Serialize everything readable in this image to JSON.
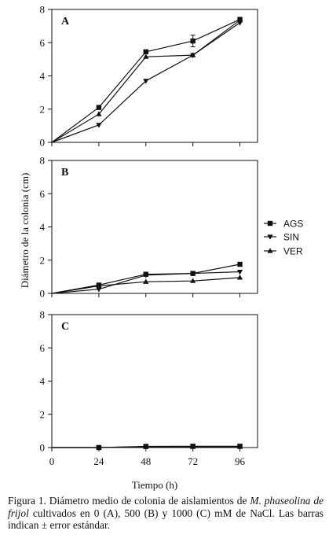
{
  "chart_data": {
    "type": "line",
    "xlabel": "Tiempo (h)",
    "ylabel": "Diámetro de la colonia (cm)",
    "x": [
      0,
      24,
      48,
      72,
      96
    ],
    "xlim": [
      0,
      105
    ],
    "ylim": [
      0,
      8
    ],
    "xticks": [
      0,
      24,
      48,
      72,
      96
    ],
    "yticks": [
      0,
      2,
      4,
      6,
      8
    ],
    "grid": false,
    "legend_position": "right",
    "series_styles": [
      {
        "name": "AGS",
        "marker": "square",
        "color": "#111111"
      },
      {
        "name": "SIN",
        "marker": "triangle-down",
        "color": "#111111"
      },
      {
        "name": "VER",
        "marker": "triangle-up",
        "color": "#111111"
      }
    ],
    "panels": [
      {
        "label": "A",
        "series": [
          {
            "name": "AGS",
            "values": [
              0,
              2.1,
              5.45,
              6.1,
              7.4
            ],
            "errors": [
              0,
              0,
              0,
              0.35,
              0
            ]
          },
          {
            "name": "SIN",
            "values": [
              0,
              1.05,
              3.7,
              5.25,
              7.2
            ]
          },
          {
            "name": "VER",
            "values": [
              0,
              1.7,
              5.15,
              5.25,
              7.35
            ]
          }
        ]
      },
      {
        "label": "B",
        "series": [
          {
            "name": "AGS",
            "values": [
              0,
              0.5,
              1.15,
              1.2,
              1.75
            ]
          },
          {
            "name": "SIN",
            "values": [
              0,
              0.25,
              1.1,
              1.2,
              1.3
            ]
          },
          {
            "name": "VER",
            "values": [
              0,
              0.45,
              0.7,
              0.75,
              0.95
            ]
          }
        ]
      },
      {
        "label": "C",
        "series": [
          {
            "name": "AGS",
            "values": [
              0,
              0,
              0.07,
              0.08,
              0.08
            ]
          },
          {
            "name": "SIN",
            "values": [
              0,
              0,
              0.05,
              0.05,
              0.05
            ]
          },
          {
            "name": "VER",
            "values": [
              0,
              0,
              0.04,
              0.04,
              0.04
            ]
          }
        ]
      }
    ]
  },
  "caption": {
    "prefix": "Figura 1. Diámetro medio de colonia de aislamientos de ",
    "italic": "M. phaseolina de frijol",
    "suffix": " cultivados en 0 (A), 500 (B) y 1000 (C) mM de NaCl. Las barras indican ± error estándar."
  }
}
